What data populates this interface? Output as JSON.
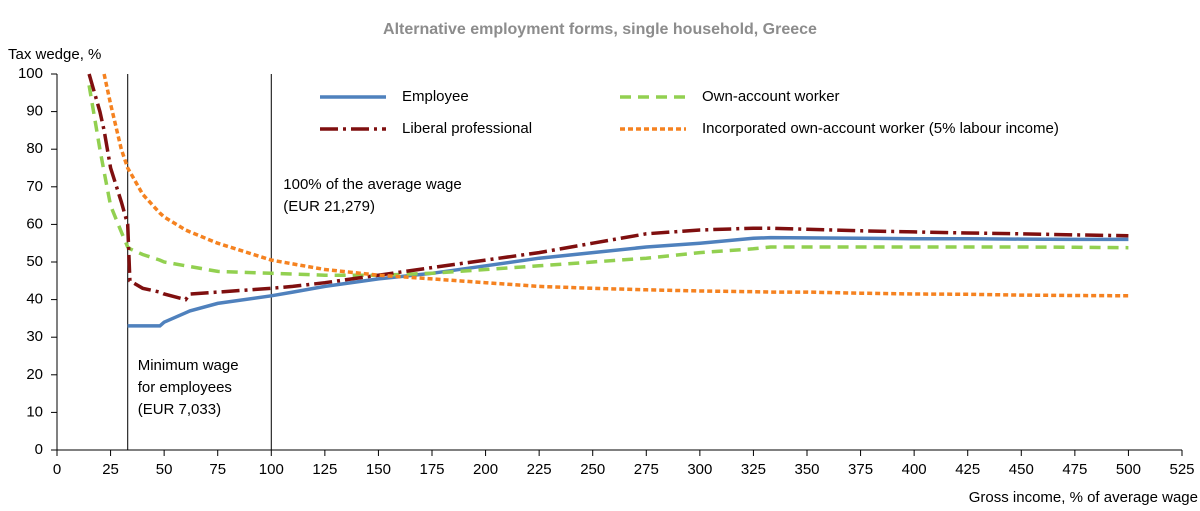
{
  "chart_data": {
    "type": "line",
    "title": "Alternative employment forms, single household, Greece",
    "y_label": "Tax wedge, %",
    "x_label": "Gross income, % of average wage",
    "x": [
      15,
      20,
      22,
      25,
      30,
      33,
      34,
      40,
      48,
      50,
      60,
      62,
      75,
      100,
      110,
      125,
      150,
      175,
      200,
      225,
      250,
      275,
      300,
      325,
      333,
      350,
      375,
      400,
      425,
      450,
      475,
      500
    ],
    "series": [
      {
        "name": "Employee",
        "color": "#4f81bd",
        "dash": "none",
        "values": [
          null,
          null,
          null,
          null,
          null,
          33,
          33,
          33,
          33,
          34,
          36.5,
          37,
          39,
          41,
          42,
          43.5,
          45.5,
          47,
          49,
          51,
          52.5,
          54,
          55,
          56.3,
          56.5,
          56.4,
          56.3,
          56.2,
          56.2,
          56.1,
          56,
          56
        ]
      },
      {
        "name": "Own-account worker",
        "color": "#92d050",
        "dash": "11,7",
        "values": [
          97,
          80,
          74,
          65,
          58,
          54,
          53.5,
          52,
          50.5,
          50,
          49,
          48.8,
          47.5,
          47,
          46.8,
          46.5,
          46.5,
          47,
          48,
          49,
          50,
          51,
          52.5,
          53.5,
          54,
          54,
          54,
          54,
          54,
          54,
          53.9,
          53.8
        ]
      },
      {
        "name": "Liberal professional",
        "color": "#7f0f0f",
        "dash": "18,5,3,5",
        "values": [
          100,
          90,
          85,
          75,
          66,
          60,
          45,
          43,
          42,
          41.5,
          40,
          41.5,
          42,
          43,
          43.5,
          44.5,
          46.5,
          48.5,
          50.5,
          52.5,
          55,
          57.5,
          58.5,
          59,
          59,
          58.7,
          58.3,
          58,
          57.7,
          57.5,
          57.2,
          57
        ]
      },
      {
        "name": "Incorporated own-account worker (5% labour income)",
        "color": "#f58220",
        "dash": "5,3",
        "values": [
          null,
          null,
          100,
          92,
          80,
          75,
          74,
          68,
          63,
          62,
          58.5,
          58,
          55,
          50.5,
          49.5,
          48,
          46.5,
          45.5,
          44.5,
          43.5,
          43,
          42.6,
          42.3,
          42.1,
          42,
          42,
          41.7,
          41.5,
          41.4,
          41.2,
          41.1,
          41
        ]
      }
    ],
    "reference_lines": [
      {
        "x": 33,
        "label": [
          "Minimum wage",
          "for employees",
          "(EUR 7,033)"
        ]
      },
      {
        "x": 100,
        "label": [
          "100% of the average wage",
          "(EUR 21,279)"
        ]
      }
    ],
    "xlim": [
      0,
      525
    ],
    "ylim": [
      0,
      100
    ],
    "xticks": [
      0,
      25,
      50,
      75,
      100,
      125,
      150,
      175,
      200,
      225,
      250,
      275,
      300,
      325,
      350,
      375,
      400,
      425,
      450,
      475,
      500,
      525
    ],
    "yticks": [
      0,
      10,
      20,
      30,
      40,
      50,
      60,
      70,
      80,
      90,
      100
    ],
    "grid": false
  }
}
